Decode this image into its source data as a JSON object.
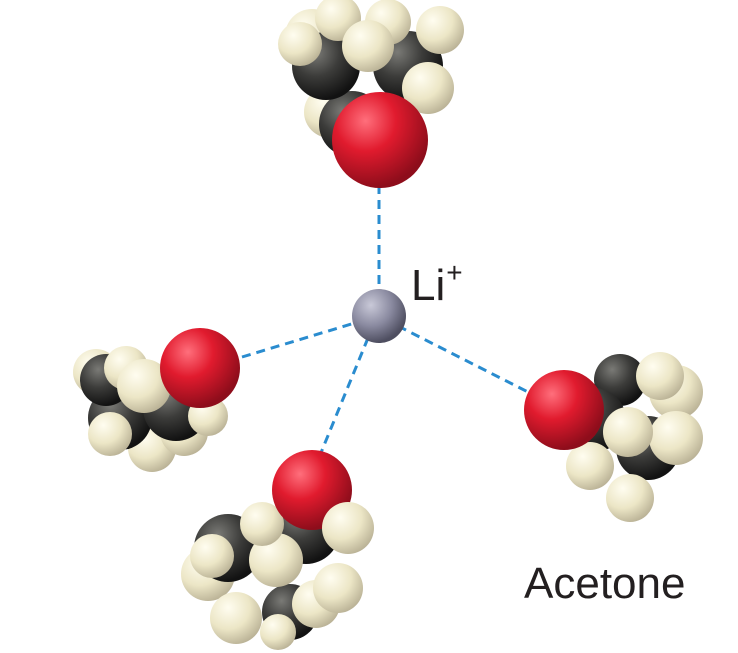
{
  "ion": {
    "symbol": "Li",
    "charge": "+"
  },
  "molecule_name": "Acetone",
  "colors": {
    "oxygen": "#e11b2e",
    "carbon": "#3c3c3a",
    "hydrogen": "#ece6c6",
    "lithium": "#8a8aa0",
    "bond_dash": "#2a8ccf",
    "text": "#231f20"
  }
}
